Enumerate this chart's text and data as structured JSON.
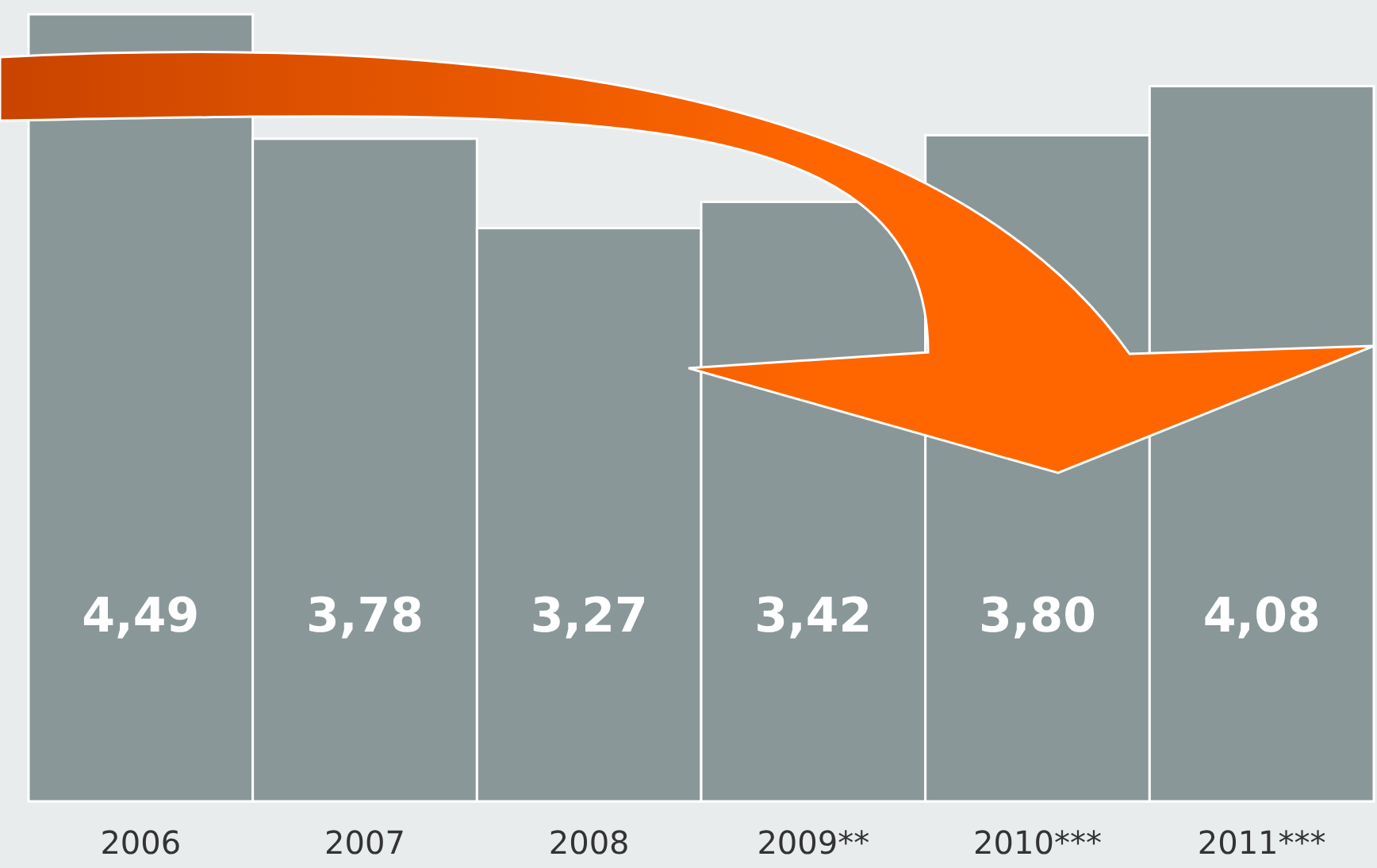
{
  "chart_data": {
    "type": "bar",
    "categories": [
      "2006",
      "2007",
      "2008",
      "2009**",
      "2010***",
      "2011***"
    ],
    "values": [
      4.49,
      3.78,
      3.27,
      3.42,
      3.8,
      4.08
    ],
    "value_labels": [
      "4,49",
      "3,78",
      "3,27",
      "3,42",
      "3,80",
      "4,08"
    ],
    "color": "#8a9799"
  }
}
